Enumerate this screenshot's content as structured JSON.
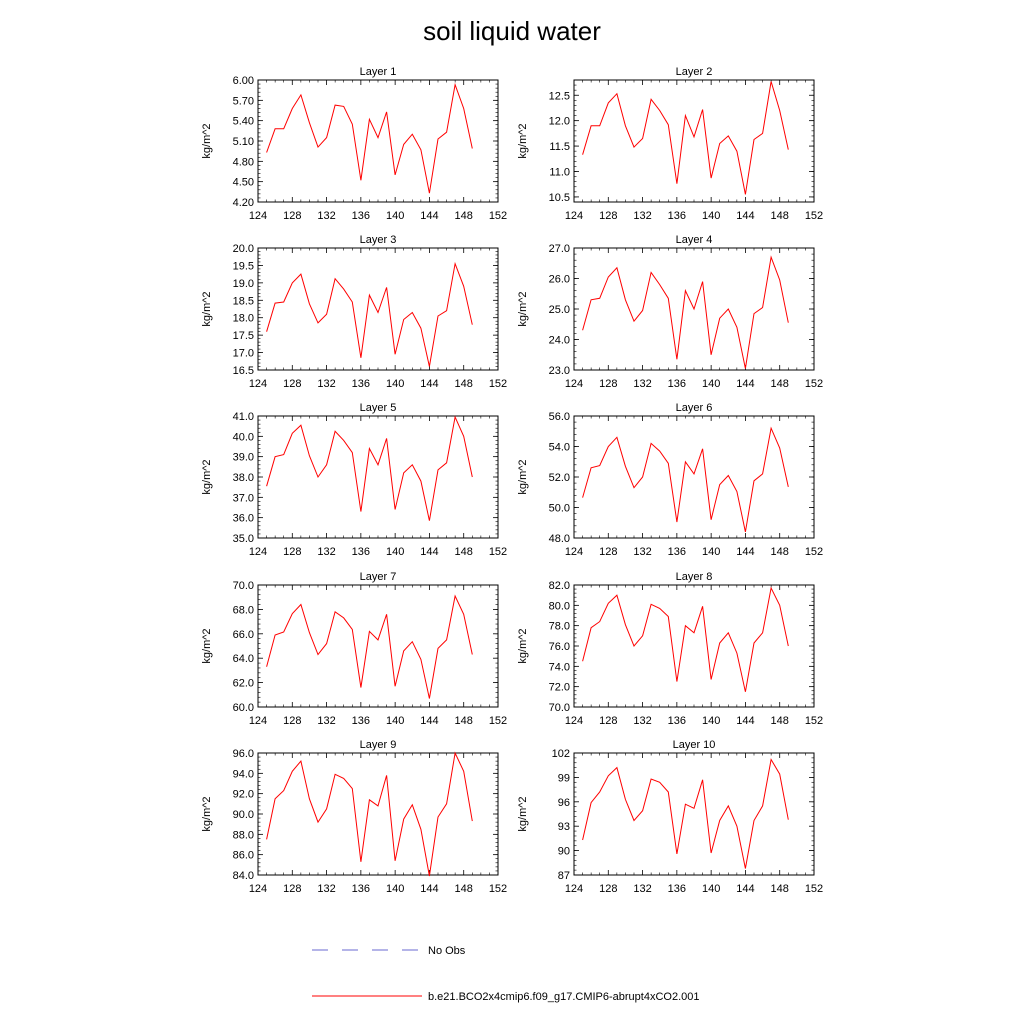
{
  "title": "soil liquid water",
  "legend": {
    "obs_label": "No Obs",
    "obs_color": "#6a6ad0",
    "model_label": "b.e21.BCO2x4cmip6.f09_g17.CMIP6-abrupt4xCO2.001",
    "model_color": "#ff0000"
  },
  "chart_data": [
    {
      "type": "line",
      "title": "Layer 1",
      "ylabel": "kg/m^2",
      "xlim": [
        124,
        152
      ],
      "xticks": [
        124,
        128,
        132,
        136,
        140,
        144,
        148,
        152
      ],
      "ylim": [
        4.2,
        6.0
      ],
      "yticks": [
        "4.20",
        "4.50",
        "4.80",
        "5.10",
        "5.40",
        "5.70",
        "6.00"
      ],
      "x": [
        125,
        126,
        127,
        128,
        129,
        130,
        131,
        132,
        133,
        134,
        135,
        136,
        137,
        138,
        139,
        140,
        141,
        142,
        143,
        144,
        145,
        146,
        147,
        148,
        149
      ],
      "values": [
        4.93,
        5.28,
        5.28,
        5.58,
        5.78,
        5.37,
        5.01,
        5.15,
        5.63,
        5.61,
        5.35,
        4.52,
        5.42,
        5.15,
        5.53,
        4.6,
        5.05,
        5.2,
        4.97,
        4.33,
        5.13,
        5.23,
        5.93,
        5.58,
        4.99
      ]
    },
    {
      "type": "line",
      "title": "Layer 2",
      "ylabel": "kg/m^2",
      "xlim": [
        124,
        152
      ],
      "xticks": [
        124,
        128,
        132,
        136,
        140,
        144,
        148,
        152
      ],
      "ylim": [
        10.4,
        12.8
      ],
      "yticks": [
        "10.5",
        "11.0",
        "11.5",
        "12.0",
        "12.5"
      ],
      "x": [
        125,
        126,
        127,
        128,
        129,
        130,
        131,
        132,
        133,
        134,
        135,
        136,
        137,
        138,
        139,
        140,
        141,
        142,
        143,
        144,
        145,
        146,
        147,
        148,
        149
      ],
      "values": [
        11.33,
        11.9,
        11.9,
        12.35,
        12.53,
        11.9,
        11.48,
        11.65,
        12.42,
        12.2,
        11.92,
        10.76,
        12.1,
        11.68,
        12.22,
        10.87,
        11.55,
        11.7,
        11.4,
        10.55,
        11.63,
        11.75,
        12.77,
        12.2,
        11.43
      ]
    },
    {
      "type": "line",
      "title": "Layer 3",
      "ylabel": "kg/m^2",
      "xlim": [
        124,
        152
      ],
      "xticks": [
        124,
        128,
        132,
        136,
        140,
        144,
        148,
        152
      ],
      "ylim": [
        16.5,
        20.0
      ],
      "yticks": [
        "16.5",
        "17.0",
        "17.5",
        "18.0",
        "18.5",
        "19.0",
        "19.5",
        "20.0"
      ],
      "x": [
        125,
        126,
        127,
        128,
        129,
        130,
        131,
        132,
        133,
        134,
        135,
        136,
        137,
        138,
        139,
        140,
        141,
        142,
        143,
        144,
        145,
        146,
        147,
        148,
        149
      ],
      "values": [
        17.6,
        18.42,
        18.45,
        19.0,
        19.25,
        18.4,
        17.85,
        18.1,
        19.12,
        18.82,
        18.45,
        16.85,
        18.65,
        18.15,
        18.87,
        16.95,
        17.95,
        18.15,
        17.7,
        16.6,
        18.05,
        18.2,
        19.55,
        18.9,
        17.8
      ]
    },
    {
      "type": "line",
      "title": "Layer 4",
      "ylabel": "kg/m^2",
      "xlim": [
        124,
        152
      ],
      "xticks": [
        124,
        128,
        132,
        136,
        140,
        144,
        148,
        152
      ],
      "ylim": [
        23.0,
        27.0
      ],
      "yticks": [
        "23.0",
        "24.0",
        "25.0",
        "26.0",
        "27.0"
      ],
      "x": [
        125,
        126,
        127,
        128,
        129,
        130,
        131,
        132,
        133,
        134,
        135,
        136,
        137,
        138,
        139,
        140,
        141,
        142,
        143,
        144,
        145,
        146,
        147,
        148,
        149
      ],
      "values": [
        24.3,
        25.3,
        25.35,
        26.05,
        26.35,
        25.3,
        24.6,
        24.95,
        26.2,
        25.8,
        25.35,
        23.35,
        25.6,
        25.0,
        25.9,
        23.5,
        24.7,
        25.0,
        24.4,
        23.05,
        24.85,
        25.05,
        26.7,
        25.95,
        24.55
      ]
    },
    {
      "type": "line",
      "title": "Layer 5",
      "ylabel": "kg/m^2",
      "xlim": [
        124,
        152
      ],
      "xticks": [
        124,
        128,
        132,
        136,
        140,
        144,
        148,
        152
      ],
      "ylim": [
        35.0,
        41.0
      ],
      "yticks": [
        "35.0",
        "36.0",
        "37.0",
        "38.0",
        "39.0",
        "40.0",
        "41.0"
      ],
      "x": [
        125,
        126,
        127,
        128,
        129,
        130,
        131,
        132,
        133,
        134,
        135,
        136,
        137,
        138,
        139,
        140,
        141,
        142,
        143,
        144,
        145,
        146,
        147,
        148,
        149
      ],
      "values": [
        37.55,
        39.0,
        39.1,
        40.15,
        40.55,
        39.05,
        38.0,
        38.6,
        40.25,
        39.8,
        39.2,
        36.3,
        39.4,
        38.6,
        39.9,
        36.4,
        38.2,
        38.6,
        37.8,
        35.85,
        38.35,
        38.7,
        40.95,
        40.0,
        38.0
      ]
    },
    {
      "type": "line",
      "title": "Layer 6",
      "ylabel": "kg/m^2",
      "xlim": [
        124,
        152
      ],
      "xticks": [
        124,
        128,
        132,
        136,
        140,
        144,
        148,
        152
      ],
      "ylim": [
        48.0,
        56.0
      ],
      "yticks": [
        "48.0",
        "50.0",
        "52.0",
        "54.0",
        "56.0"
      ],
      "x": [
        125,
        126,
        127,
        128,
        129,
        130,
        131,
        132,
        133,
        134,
        135,
        136,
        137,
        138,
        139,
        140,
        141,
        142,
        143,
        144,
        145,
        146,
        147,
        148,
        149
      ],
      "values": [
        50.65,
        52.6,
        52.75,
        54.0,
        54.6,
        52.7,
        51.3,
        52.0,
        54.2,
        53.7,
        52.9,
        49.05,
        53.0,
        52.2,
        53.85,
        49.2,
        51.5,
        52.1,
        51.05,
        48.4,
        51.75,
        52.2,
        55.2,
        53.9,
        51.35
      ]
    },
    {
      "type": "line",
      "title": "Layer 7",
      "ylabel": "kg/m^2",
      "xlim": [
        124,
        152
      ],
      "xticks": [
        124,
        128,
        132,
        136,
        140,
        144,
        148,
        152
      ],
      "ylim": [
        60.0,
        70.0
      ],
      "yticks": [
        "60.0",
        "62.0",
        "64.0",
        "66.0",
        "68.0",
        "70.0"
      ],
      "x": [
        125,
        126,
        127,
        128,
        129,
        130,
        131,
        132,
        133,
        134,
        135,
        136,
        137,
        138,
        139,
        140,
        141,
        142,
        143,
        144,
        145,
        146,
        147,
        148,
        149
      ],
      "values": [
        63.3,
        65.9,
        66.15,
        67.65,
        68.4,
        66.1,
        64.3,
        65.2,
        67.8,
        67.3,
        66.35,
        61.6,
        66.2,
        65.5,
        67.6,
        61.7,
        64.6,
        65.35,
        63.9,
        60.7,
        64.8,
        65.5,
        69.1,
        67.6,
        64.3
      ]
    },
    {
      "type": "line",
      "title": "Layer 8",
      "ylabel": "kg/m^2",
      "xlim": [
        124,
        152
      ],
      "xticks": [
        124,
        128,
        132,
        136,
        140,
        144,
        148,
        152
      ],
      "ylim": [
        70.0,
        82.0
      ],
      "yticks": [
        "70.0",
        "72.0",
        "74.0",
        "76.0",
        "78.0",
        "80.0",
        "82.0"
      ],
      "x": [
        125,
        126,
        127,
        128,
        129,
        130,
        131,
        132,
        133,
        134,
        135,
        136,
        137,
        138,
        139,
        140,
        141,
        142,
        143,
        144,
        145,
        146,
        147,
        148,
        149
      ],
      "values": [
        74.5,
        77.8,
        78.4,
        80.2,
        81.0,
        78.1,
        76.0,
        77.0,
        80.1,
        79.7,
        78.9,
        72.5,
        78.0,
        77.3,
        79.9,
        72.7,
        76.3,
        77.3,
        75.3,
        71.5,
        76.3,
        77.3,
        81.7,
        80.0,
        76.0
      ]
    },
    {
      "type": "line",
      "title": "Layer 9",
      "ylabel": "kg/m^2",
      "xlim": [
        124,
        152
      ],
      "xticks": [
        124,
        128,
        132,
        136,
        140,
        144,
        148,
        152
      ],
      "ylim": [
        84.0,
        96.0
      ],
      "yticks": [
        "84.0",
        "86.0",
        "88.0",
        "90.0",
        "92.0",
        "94.0",
        "96.0"
      ],
      "x": [
        125,
        126,
        127,
        128,
        129,
        130,
        131,
        132,
        133,
        134,
        135,
        136,
        137,
        138,
        139,
        140,
        141,
        142,
        143,
        144,
        145,
        146,
        147,
        148,
        149
      ],
      "values": [
        87.5,
        91.5,
        92.3,
        94.2,
        95.2,
        91.5,
        89.2,
        90.5,
        93.9,
        93.5,
        92.5,
        85.3,
        91.4,
        90.8,
        93.8,
        85.4,
        89.5,
        90.9,
        88.5,
        83.9,
        89.7,
        91.0,
        96.0,
        94.2,
        89.3
      ]
    },
    {
      "type": "line",
      "title": "Layer 10",
      "ylabel": "kg/m^2",
      "xlim": [
        124,
        152
      ],
      "xticks": [
        124,
        128,
        132,
        136,
        140,
        144,
        148,
        152
      ],
      "ylim": [
        87,
        102
      ],
      "yticks": [
        "87",
        "90",
        "93",
        "96",
        "99",
        "102"
      ],
      "x": [
        125,
        126,
        127,
        128,
        129,
        130,
        131,
        132,
        133,
        134,
        135,
        136,
        137,
        138,
        139,
        140,
        141,
        142,
        143,
        144,
        145,
        146,
        147,
        148,
        149
      ],
      "values": [
        91.3,
        95.9,
        97.2,
        99.2,
        100.2,
        96.3,
        93.7,
        94.9,
        98.8,
        98.4,
        97.2,
        89.6,
        95.7,
        95.2,
        98.7,
        89.7,
        93.7,
        95.5,
        93.0,
        87.8,
        93.7,
        95.5,
        101.2,
        99.4,
        93.8
      ]
    }
  ]
}
